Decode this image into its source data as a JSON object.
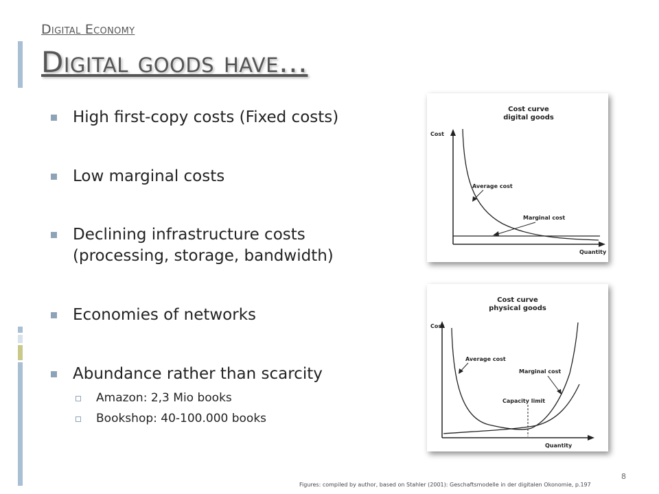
{
  "header": {
    "kicker": "Digital Economy",
    "title": "Digital goods have…"
  },
  "bullets": [
    "High first-copy costs (Fixed costs)",
    "Low marginal costs",
    "Declining infrastructure costs (processing, storage, bandwidth)",
    "Economies of networks",
    "Abundance rather than scarcity"
  ],
  "sub_bullets": [
    "Amazon: 2,3 Mio books",
    "Bookshop:  40-100.000 books"
  ],
  "figure_digital": {
    "title_line1": "Cost curve",
    "title_line2": "digital goods",
    "y_axis": "Cost",
    "x_axis": "Quantity",
    "label_average": "Average cost",
    "label_marginal": "Marginal cost"
  },
  "figure_physical": {
    "title_line1": "Cost curve",
    "title_line2": "physical goods",
    "y_axis": "Cost",
    "x_axis": "Quantity",
    "label_average": "Average cost",
    "label_marginal": "Marginal cost",
    "label_capacity": "Capacity limit"
  },
  "footer": "Figures: compiled by author, based on Stahler (2001): Geschaftsmodelle in der digitalen Okonomie, p.197",
  "page_number": "8",
  "colors": {
    "accent_bar": "#a9bfd4",
    "tick_light": "#d8e2ea",
    "tick_olive": "#c9c98a",
    "bullet": "#8fa3b8"
  }
}
